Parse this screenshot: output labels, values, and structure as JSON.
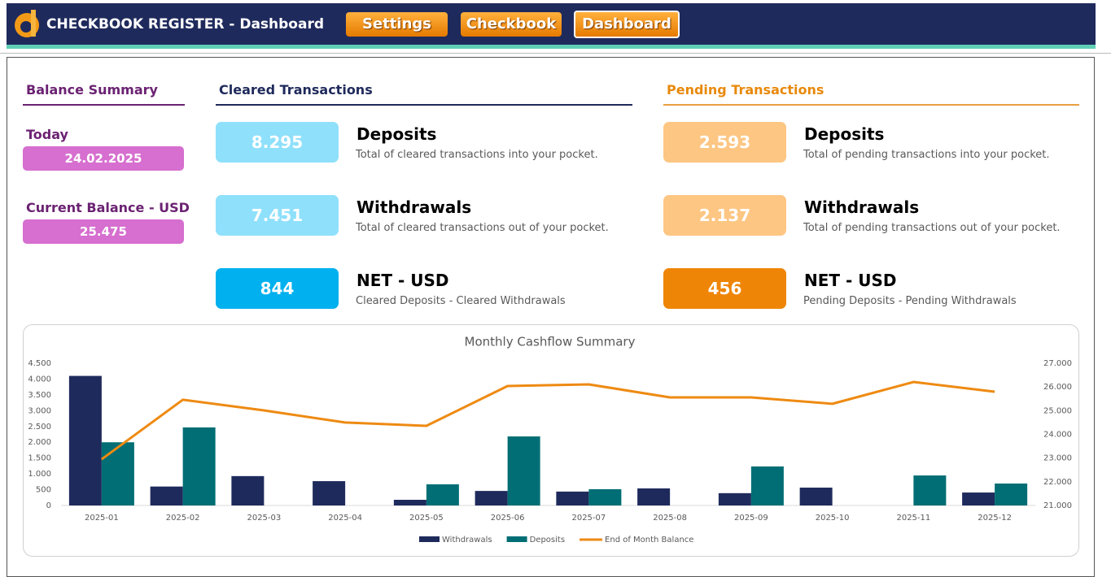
{
  "header": {
    "title": "CHECKBOOK REGISTER - Dashboard",
    "buttons": [
      "Settings",
      "Checkbook",
      "Dashboard"
    ]
  },
  "balance_summary": {
    "title": "Balance Summary",
    "today_label": "Today",
    "today_value": "24.02.2025",
    "balance_label": "Current Balance - USD",
    "balance_value": "25.475"
  },
  "cleared": {
    "title": "Cleared Transactions",
    "items": [
      {
        "value": "8.295",
        "label": "Deposits",
        "description": "Total of cleared transactions into your pocket."
      },
      {
        "value": "7.451",
        "label": "Withdrawals",
        "description": "Total of cleared transactions out of your pocket."
      },
      {
        "value": "844",
        "label": "NET - USD",
        "description": "Cleared Deposits - Cleared Withdrawals"
      }
    ]
  },
  "pending": {
    "title": "Pending Transactions",
    "items": [
      {
        "value": "2.593",
        "label": "Deposits",
        "description": "Total of pending transactions into your pocket."
      },
      {
        "value": "2.137",
        "label": "Withdrawals",
        "description": "Total of pending transactions out of your pocket."
      },
      {
        "value": "456",
        "label": "NET - USD",
        "description": "Pending Deposits - Pending Withdrawals"
      }
    ]
  },
  "chart_data": {
    "type": "bar",
    "title": "Monthly Cashflow Summary",
    "categories": [
      "2025-01",
      "2025-02",
      "2025-03",
      "2025-04",
      "2025-05",
      "2025-06",
      "2025-07",
      "2025-08",
      "2025-09",
      "2025-10",
      "2025-11",
      "2025-12"
    ],
    "series": [
      {
        "name": "Withdrawals",
        "color": "#1f2a5c",
        "values": [
          4100,
          600,
          930,
          770,
          180,
          460,
          440,
          540,
          390,
          565,
          0,
          410
        ]
      },
      {
        "name": "Deposits",
        "color": "#006e74",
        "values": [
          2000,
          2470,
          0,
          0,
          670,
          2185,
          515,
          0,
          1235,
          0,
          950,
          695
        ]
      },
      {
        "name": "End of Month Balance",
        "color": "#ee8a12",
        "type": "line",
        "axis": "y2",
        "values": [
          22950,
          25460,
          25010,
          24500,
          24360,
          26040,
          26110,
          25560,
          25560,
          25290,
          26210,
          25800
        ]
      }
    ],
    "ylim": [
      0,
      4500
    ],
    "yticks": [
      0,
      500,
      {
        "value": 1000,
        "label": "1.000"
      },
      {
        "value": 1500,
        "label": "1.500"
      },
      {
        "value": 2000,
        "label": "2.000"
      },
      {
        "value": 2500,
        "label": "2.500"
      },
      {
        "value": 3000,
        "label": "3.000"
      },
      {
        "value": 3500,
        "label": "3.500"
      },
      {
        "value": 4000,
        "label": "4.000"
      },
      {
        "value": 4500,
        "label": "4.500"
      }
    ],
    "y2lim": [
      21000,
      27000
    ],
    "y2ticks": [
      {
        "value": 21000,
        "label": "21.000"
      },
      {
        "value": 22000,
        "label": "22.000"
      },
      {
        "value": 23000,
        "label": "23.000"
      },
      {
        "value": 24000,
        "label": "24.000"
      },
      {
        "value": 25000,
        "label": "25.000"
      },
      {
        "value": 26000,
        "label": "26.000"
      },
      {
        "value": 27000,
        "label": "27.000"
      }
    ],
    "legend": "bottom"
  }
}
